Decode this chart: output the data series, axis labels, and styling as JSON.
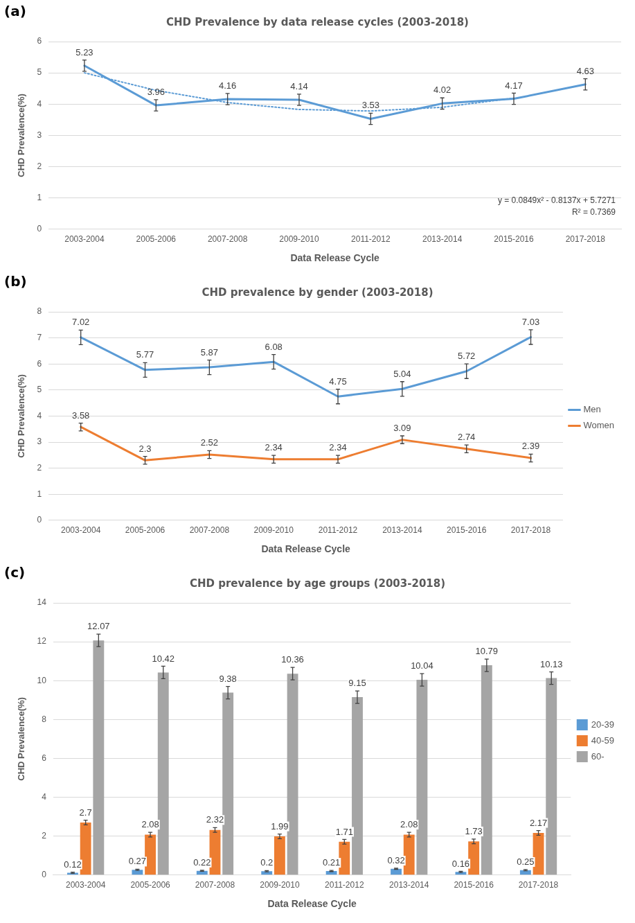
{
  "chart_data": [
    {
      "type": "line",
      "title": "CHD Prevalence by data release cycles (2003-2018)",
      "xlabel": "Data Release Cycle",
      "ylabel": "CHD Prevalence(%)",
      "categories": [
        "2003-2004",
        "2005-2006",
        "2007-2008",
        "2009-2010",
        "2011-2012",
        "2013-2014",
        "2015-2016",
        "2017-2018"
      ],
      "series": [
        {
          "color": "#5b9bd5",
          "values": [
            5.23,
            3.96,
            4.16,
            4.14,
            3.53,
            4.02,
            4.17,
            4.63
          ],
          "errors": [
            0.18,
            0.18,
            0.18,
            0.18,
            0.18,
            0.18,
            0.18,
            0.18
          ],
          "value_labels": [
            "5.23",
            "3.96",
            "4.16",
            "4.14",
            "3.53",
            "4.02",
            "4.17",
            "4.63"
          ]
        },
        {
          "type": "line",
          "color": "#5b9bd5",
          "line_style": "dotted",
          "values": [
            5.0,
            4.44,
            4.05,
            3.83,
            3.78,
            3.9,
            4.19,
            null
          ]
        }
      ],
      "ylim": [
        0,
        6
      ],
      "yticks": [
        0,
        1,
        2,
        3,
        4,
        5,
        6
      ],
      "grid": "y",
      "marker": "none",
      "line_style": "solid",
      "annotations": [
        "(a)",
        "y = 0.0849x² - 0.8137x + 5.7271",
        "R² = 0.7369"
      ]
    },
    {
      "type": "line",
      "title": "CHD prevalence by gender (2003-2018)",
      "xlabel": "Data Release Cycle",
      "ylabel": "CHD Prevalence(%)",
      "categories": [
        "2003-2004",
        "2005-2006",
        "2007-2008",
        "2009-2010",
        "2011-2012",
        "2013-2014",
        "2015-2016",
        "2017-2018"
      ],
      "series": [
        {
          "name": "Men",
          "color": "#5b9bd5",
          "values": [
            7.02,
            5.77,
            5.87,
            6.08,
            4.75,
            5.04,
            5.72,
            7.03
          ],
          "errors": [
            0.28,
            0.28,
            0.28,
            0.28,
            0.28,
            0.28,
            0.28,
            0.28
          ]
        },
        {
          "name": "Women",
          "color": "#ed7d31",
          "values": [
            3.58,
            2.3,
            2.52,
            2.34,
            2.34,
            3.09,
            2.74,
            2.39
          ],
          "errors": [
            0.15,
            0.15,
            0.15,
            0.15,
            0.15,
            0.15,
            0.15,
            0.15
          ]
        }
      ],
      "ylim": [
        0,
        8
      ],
      "yticks": [
        0,
        1,
        2,
        3,
        4,
        5,
        6,
        7,
        8
      ],
      "grid": "y",
      "marker": "none",
      "line_style": "solid",
      "legend": "right",
      "data_labels": true,
      "annotations": [
        "(b)"
      ]
    },
    {
      "type": "bar",
      "title": "CHD prevalence by age groups (2003-2018)",
      "xlabel": "Data Release Cycle",
      "ylabel": "CHD Prevalence(%)",
      "categories": [
        "2003-2004",
        "2005-2006",
        "2007-2008",
        "2009-2010",
        "2011-2012",
        "2013-2014",
        "2015-2016",
        "2017-2018"
      ],
      "series": [
        {
          "name": "20-39",
          "color": "#5b9bd5",
          "values": [
            0.12,
            0.27,
            0.22,
            0.2,
            0.21,
            0.32,
            0.16,
            0.25
          ],
          "errors": [
            0.03,
            0.03,
            0.03,
            0.03,
            0.03,
            0.03,
            0.03,
            0.03
          ]
        },
        {
          "name": "40-59",
          "color": "#ed7d31",
          "values": [
            2.7,
            2.08,
            2.32,
            1.99,
            1.71,
            2.08,
            1.73,
            2.17
          ],
          "errors": [
            0.12,
            0.12,
            0.12,
            0.12,
            0.12,
            0.12,
            0.12,
            0.12
          ]
        },
        {
          "name": "60-",
          "color": "#a5a5a5",
          "values": [
            12.07,
            10.42,
            9.38,
            10.36,
            9.15,
            10.04,
            10.79,
            10.13
          ],
          "errors": [
            0.32,
            0.32,
            0.32,
            0.32,
            0.32,
            0.32,
            0.32,
            0.32
          ]
        }
      ],
      "ylim": [
        0,
        14
      ],
      "yticks": [
        0,
        2,
        4,
        6,
        8,
        10,
        12,
        14
      ],
      "grid": "y",
      "legend": "right",
      "data_labels": true,
      "annotations": [
        "(c)"
      ]
    }
  ]
}
